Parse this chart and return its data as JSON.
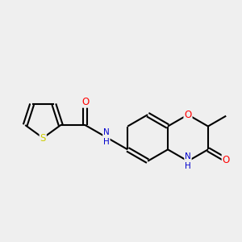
{
  "background_color": "#efefef",
  "bond_color": "#000000",
  "atom_colors": {
    "O": "#ff0000",
    "N": "#0000cd",
    "S": "#cccc00",
    "C": "#000000"
  },
  "figsize": [
    3.0,
    3.0
  ],
  "dpi": 100,
  "xlim": [
    -3.5,
    3.5
  ],
  "ylim": [
    -2.2,
    2.2
  ]
}
